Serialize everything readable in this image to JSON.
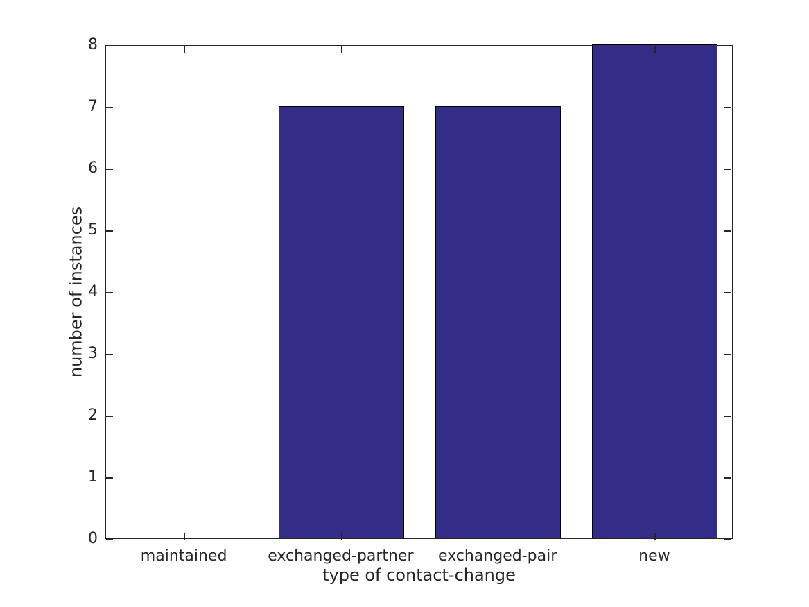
{
  "chart_data": {
    "type": "bar",
    "title": "",
    "xlabel": "type of contact-change",
    "ylabel": "number of instances",
    "categories": [
      "maintained",
      "exchanged-partner",
      "exchanged-pair",
      "new"
    ],
    "values": [
      0,
      7,
      7,
      8
    ],
    "yticks": [
      0,
      1,
      2,
      3,
      4,
      5,
      6,
      7,
      8
    ],
    "ylim": [
      0,
      8
    ],
    "bar_width_fraction": 0.8,
    "bar_color": "#342d87",
    "bar_edge_color": "#000000",
    "axis_color": "#262626",
    "tick_direction": "in",
    "grid": false,
    "legend": null,
    "background_color": "#ffffff"
  }
}
